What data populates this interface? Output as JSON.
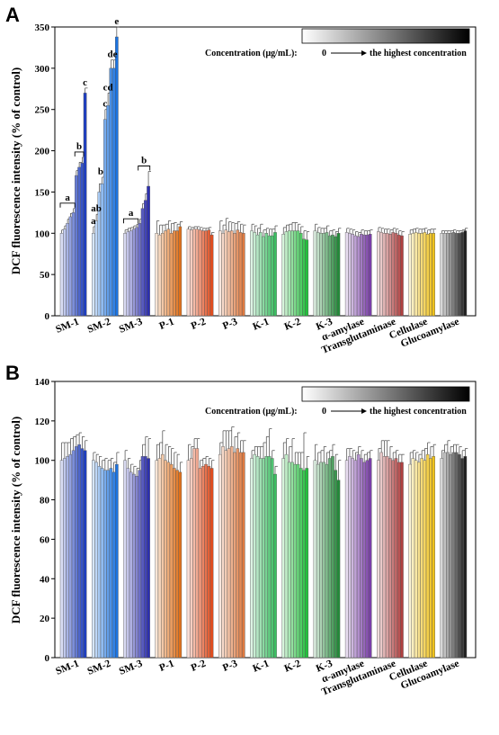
{
  "chart_data": [
    {
      "panel": "A",
      "type": "bar",
      "ylabel": "DCF fluorescence intensity (% of control)",
      "ylim": [
        0,
        350
      ],
      "yticks": [
        0,
        50,
        100,
        150,
        200,
        250,
        300,
        350
      ],
      "legend": {
        "label": "Concentration (μg/mL):",
        "low": "0",
        "high": "the highest concentration"
      },
      "groups": [
        {
          "name": "SM-1",
          "color": "#1f3fbf",
          "values": [
            100,
            105,
            112,
            120,
            125,
            170,
            180,
            185,
            270
          ],
          "errors": [
            4,
            4,
            5,
            4,
            5,
            6,
            6,
            7,
            6
          ]
        },
        {
          "name": "SM-2",
          "color": "#1b73e0",
          "values": [
            100,
            115,
            150,
            160,
            238,
            255,
            300,
            300,
            338
          ],
          "errors": [
            8,
            8,
            10,
            8,
            12,
            15,
            10,
            10,
            12
          ]
        },
        {
          "name": "SM-3",
          "color": "#2c2fb0",
          "values": [
            100,
            102,
            103,
            105,
            107,
            112,
            130,
            140,
            157
          ],
          "errors": [
            4,
            4,
            4,
            4,
            4,
            5,
            6,
            8,
            18
          ]
        },
        {
          "name": "P-1",
          "color": "#e0701a",
          "values": [
            100,
            98,
            100,
            103,
            105,
            100,
            103,
            103,
            108
          ],
          "errors": [
            15,
            12,
            10,
            8,
            10,
            12,
            10,
            8,
            6
          ]
        },
        {
          "name": "P-2",
          "color": "#e24e1f",
          "values": [
            105,
            104,
            105,
            105,
            104,
            103,
            103,
            104,
            98
          ],
          "errors": [
            3,
            3,
            3,
            3,
            3,
            3,
            3,
            3,
            3
          ]
        },
        {
          "name": "P-3",
          "color": "#e07a40",
          "values": [
            103,
            100,
            104,
            102,
            103,
            100,
            104,
            101,
            100
          ],
          "errors": [
            12,
            10,
            14,
            12,
            10,
            12,
            10,
            10,
            10
          ]
        },
        {
          "name": "K-1",
          "color": "#3bbf62",
          "values": [
            103,
            101,
            98,
            101,
            96,
            100,
            97,
            97,
            101
          ],
          "errors": [
            8,
            8,
            8,
            10,
            8,
            6,
            8,
            8,
            8
          ]
        },
        {
          "name": "K-2",
          "color": "#22c03c",
          "values": [
            99,
            102,
            103,
            103,
            103,
            103,
            100,
            93,
            92
          ],
          "errors": [
            8,
            8,
            8,
            10,
            10,
            8,
            8,
            10,
            10
          ]
        },
        {
          "name": "K-3",
          "color": "#248a3a",
          "values": [
            103,
            101,
            100,
            100,
            101,
            97,
            98,
            96,
            100
          ],
          "errors": [
            8,
            6,
            6,
            6,
            8,
            6,
            6,
            6,
            6
          ]
        },
        {
          "name": "α-amylase",
          "color": "#7a3fa8",
          "values": [
            101,
            100,
            99,
            97,
            96,
            99,
            98,
            98,
            99
          ],
          "errors": [
            5,
            5,
            5,
            5,
            5,
            5,
            5,
            5,
            5
          ]
        },
        {
          "name": "Transglutaminase",
          "color": "#b04040",
          "values": [
            102,
            101,
            100,
            100,
            99,
            101,
            100,
            98,
            97
          ],
          "errors": [
            5,
            5,
            5,
            5,
            5,
            5,
            5,
            5,
            5
          ]
        },
        {
          "name": "Cellulase",
          "color": "#f0c21a",
          "values": [
            99,
            100,
            101,
            100,
            100,
            101,
            99,
            100,
            100
          ],
          "errors": [
            5,
            5,
            5,
            5,
            5,
            5,
            5,
            5,
            5
          ]
        },
        {
          "name": "Glucoamylase",
          "color": "#222222",
          "values": [
            100,
            100,
            100,
            100,
            101,
            100,
            100,
            101,
            103
          ],
          "errors": [
            3,
            3,
            3,
            3,
            3,
            3,
            3,
            3,
            3
          ]
        }
      ],
      "annotations": [
        {
          "group": "SM-1",
          "text": "a",
          "from": 0,
          "to": 4,
          "bracket": true
        },
        {
          "group": "SM-1",
          "text": "b",
          "from": 5,
          "to": 7,
          "bracket": true
        },
        {
          "group": "SM-1",
          "text": "c",
          "from": 8,
          "to": 8,
          "bracket": false
        },
        {
          "group": "SM-2",
          "text": "a",
          "from": 0,
          "to": 0,
          "bracket": false
        },
        {
          "group": "SM-2",
          "text": "ab",
          "from": 1,
          "to": 1,
          "bracket": false
        },
        {
          "group": "SM-2",
          "text": "b",
          "from": 2,
          "to": 3,
          "bracket": false
        },
        {
          "group": "SM-2",
          "text": "c",
          "from": 4,
          "to": 4,
          "bracket": false
        },
        {
          "group": "SM-2",
          "text": "cd",
          "from": 5,
          "to": 5,
          "bracket": false
        },
        {
          "group": "SM-2",
          "text": "de",
          "from": 6,
          "to": 7,
          "bracket": false
        },
        {
          "group": "SM-2",
          "text": "e",
          "from": 8,
          "to": 8,
          "bracket": false
        },
        {
          "group": "SM-3",
          "text": "a",
          "from": 0,
          "to": 4,
          "bracket": true
        },
        {
          "group": "SM-3",
          "text": "b",
          "from": 5,
          "to": 8,
          "bracket": true
        }
      ]
    },
    {
      "panel": "B",
      "type": "bar",
      "ylabel": "DCF fluorescence intensity (% of control)",
      "ylim": [
        0,
        140
      ],
      "yticks": [
        0,
        20,
        40,
        60,
        80,
        100,
        120,
        140
      ],
      "legend": {
        "label": "Concentration (μg/mL):",
        "low": "0",
        "high": "the highest concentration"
      },
      "groups": [
        {
          "name": "SM-1",
          "color": "#1f3fbf",
          "values": [
            100,
            101,
            102,
            103,
            105,
            107,
            108,
            106,
            105
          ],
          "errors": [
            9,
            8,
            7,
            8,
            7,
            6,
            6,
            6,
            5
          ]
        },
        {
          "name": "SM-2",
          "color": "#1b73e0",
          "values": [
            100,
            99,
            97,
            96,
            95,
            95,
            96,
            94,
            98
          ],
          "errors": [
            4,
            4,
            5,
            4,
            6,
            5,
            5,
            5,
            6
          ]
        },
        {
          "name": "SM-3",
          "color": "#2c2fb0",
          "values": [
            100,
            96,
            94,
            93,
            92,
            95,
            102,
            102,
            101
          ],
          "errors": [
            5,
            5,
            4,
            4,
            4,
            5,
            6,
            10,
            10
          ]
        },
        {
          "name": "P-1",
          "color": "#e0701a",
          "values": [
            100,
            101,
            103,
            100,
            99,
            98,
            96,
            95,
            94
          ],
          "errors": [
            8,
            8,
            12,
            8,
            8,
            8,
            8,
            8,
            5
          ]
        },
        {
          "name": "P-2",
          "color": "#e24e1f",
          "values": [
            100,
            101,
            106,
            106,
            96,
            97,
            98,
            97,
            96
          ],
          "errors": [
            8,
            6,
            5,
            5,
            4,
            4,
            4,
            4,
            4
          ]
        },
        {
          "name": "P-3",
          "color": "#e07a40",
          "values": [
            103,
            107,
            105,
            106,
            107,
            104,
            106,
            104,
            104
          ],
          "errors": [
            6,
            8,
            10,
            9,
            10,
            8,
            8,
            6,
            6
          ]
        },
        {
          "name": "K-1",
          "color": "#3bbf62",
          "values": [
            101,
            103,
            102,
            101,
            101,
            102,
            102,
            101,
            93
          ],
          "errors": [
            4,
            4,
            5,
            6,
            8,
            10,
            14,
            4,
            4
          ]
        },
        {
          "name": "K-2",
          "color": "#22c03c",
          "values": [
            101,
            103,
            99,
            99,
            98,
            98,
            96,
            95,
            96
          ],
          "errors": [
            8,
            8,
            8,
            12,
            6,
            6,
            8,
            19,
            6
          ]
        },
        {
          "name": "K-3",
          "color": "#248a3a",
          "values": [
            100,
            98,
            99,
            99,
            98,
            101,
            102,
            95,
            90
          ],
          "errors": [
            8,
            6,
            6,
            8,
            6,
            4,
            6,
            8,
            10
          ]
        },
        {
          "name": "α-amylase",
          "color": "#7a3fa8",
          "values": [
            100,
            102,
            101,
            100,
            103,
            101,
            99,
            100,
            101
          ],
          "errors": [
            6,
            4,
            4,
            4,
            4,
            4,
            4,
            4,
            4
          ]
        },
        {
          "name": "Transglutaminase",
          "color": "#b04040",
          "values": [
            100,
            104,
            102,
            102,
            101,
            100,
            101,
            99,
            99
          ],
          "errors": [
            6,
            6,
            8,
            8,
            6,
            4,
            4,
            4,
            4
          ]
        },
        {
          "name": "Cellulase",
          "color": "#f0c21a",
          "values": [
            98,
            101,
            100,
            99,
            101,
            100,
            103,
            101,
            102
          ],
          "errors": [
            6,
            4,
            4,
            4,
            4,
            6,
            6,
            6,
            6
          ]
        },
        {
          "name": "Glucoamylase",
          "color": "#222222",
          "values": [
            101,
            104,
            104,
            103,
            104,
            104,
            103,
            101,
            102
          ],
          "errors": [
            4,
            4,
            6,
            4,
            4,
            4,
            4,
            4,
            4
          ]
        }
      ],
      "annotations": []
    }
  ]
}
